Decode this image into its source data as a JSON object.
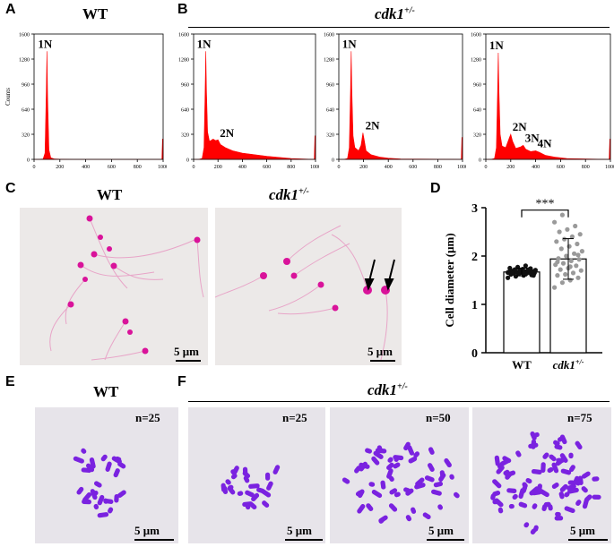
{
  "panels": {
    "a": {
      "letter": "A",
      "title": "WT"
    },
    "b": {
      "letter": "B",
      "title": "cdk1",
      "title_sup": "+/-"
    },
    "c": {
      "letter": "C",
      "wt_title": "WT",
      "mut_title": "cdk1",
      "mut_sup": "+/-",
      "scale_wt": "5 μm",
      "scale_mut": "5 μm"
    },
    "d": {
      "letter": "D"
    },
    "e": {
      "letter": "E",
      "title": "WT",
      "n": "n=25",
      "scale": "5 μm"
    },
    "f": {
      "letter": "F",
      "title": "cdk1",
      "title_sup": "+/-",
      "n1": "n=25",
      "n2": "n=50",
      "n3": "n=75",
      "scale": "5 μm"
    }
  },
  "colors": {
    "histogram": "#ff0000",
    "sperm_head": "#d9139a",
    "chromosome": "#7a22e0",
    "bar_wt_points": "#111111",
    "bar_mut_points": "#9a9a9a",
    "photo_bg": "#ece9e8",
    "karyo_bg": "#e7e4ea"
  },
  "chart_data": [
    {
      "type": "area",
      "panel": "A",
      "ylabel": "Counts",
      "yticks": [
        "0",
        "320",
        "640",
        "960",
        "1280",
        "1600"
      ],
      "xticks": [
        "0",
        "200",
        "400",
        "600",
        "800",
        "1000"
      ],
      "ylim": [
        0,
        1600
      ],
      "xlim": [
        0,
        1000
      ],
      "peak_labels": [
        {
          "text": "1N",
          "x": 100,
          "y": 1380
        }
      ],
      "x": [
        0,
        40,
        70,
        85,
        95,
        100,
        105,
        115,
        130,
        160,
        200,
        300,
        500,
        800,
        990,
        995,
        1000
      ],
      "y": [
        0,
        0,
        5,
        80,
        900,
        1380,
        800,
        120,
        20,
        5,
        2,
        0,
        0,
        0,
        0,
        260,
        260
      ]
    },
    {
      "type": "area",
      "panel": "B1",
      "yticks": [
        "0",
        "320",
        "640",
        "960",
        "1280",
        "1600"
      ],
      "xticks": [
        "0",
        "200",
        "400",
        "600",
        "800",
        "1000"
      ],
      "ylim": [
        0,
        1600
      ],
      "xlim": [
        0,
        1000
      ],
      "peak_labels": [
        {
          "text": "1N",
          "x": 100,
          "y": 1380
        },
        {
          "text": "2N",
          "x": 200,
          "y": 240
        }
      ],
      "x": [
        0,
        40,
        70,
        85,
        95,
        100,
        105,
        115,
        130,
        160,
        180,
        200,
        220,
        260,
        320,
        400,
        500,
        600,
        700,
        800,
        990,
        995,
        1000
      ],
      "y": [
        0,
        0,
        10,
        150,
        900,
        1380,
        900,
        350,
        230,
        260,
        240,
        250,
        190,
        150,
        110,
        80,
        60,
        40,
        25,
        10,
        0,
        300,
        300
      ]
    },
    {
      "type": "area",
      "panel": "B2",
      "yticks": [
        "0",
        "320",
        "640",
        "960",
        "1280",
        "1600"
      ],
      "xticks": [
        "0",
        "200",
        "400",
        "600",
        "800",
        "1000"
      ],
      "ylim": [
        0,
        1600
      ],
      "xlim": [
        0,
        1000
      ],
      "peak_labels": [
        {
          "text": "1N",
          "x": 100,
          "y": 1380
        },
        {
          "text": "2N",
          "x": 200,
          "y": 340
        }
      ],
      "x": [
        0,
        40,
        70,
        85,
        95,
        100,
        105,
        115,
        130,
        160,
        180,
        195,
        205,
        220,
        260,
        330,
        400,
        500,
        990,
        995,
        1000
      ],
      "y": [
        0,
        0,
        10,
        150,
        900,
        1380,
        900,
        300,
        150,
        110,
        180,
        340,
        250,
        110,
        60,
        30,
        15,
        5,
        0,
        280,
        280
      ]
    },
    {
      "type": "area",
      "panel": "B3",
      "yticks": [
        "0",
        "320",
        "640",
        "960",
        "1280",
        "1600"
      ],
      "xticks": [
        "0",
        "200",
        "400",
        "600",
        "800",
        "1000"
      ],
      "ylim": [
        0,
        1600
      ],
      "xlim": [
        0,
        1000
      ],
      "peak_labels": [
        {
          "text": "1N",
          "x": 100,
          "y": 1360
        },
        {
          "text": "2N",
          "x": 200,
          "y": 320
        },
        {
          "text": "3N",
          "x": 300,
          "y": 180
        },
        {
          "text": "4N",
          "x": 400,
          "y": 110
        }
      ],
      "x": [
        0,
        40,
        70,
        85,
        95,
        100,
        105,
        115,
        130,
        160,
        190,
        200,
        215,
        240,
        280,
        300,
        320,
        360,
        400,
        430,
        480,
        550,
        650,
        990,
        995,
        1000
      ],
      "y": [
        0,
        0,
        10,
        150,
        900,
        1360,
        900,
        320,
        170,
        150,
        280,
        320,
        230,
        140,
        160,
        180,
        130,
        100,
        110,
        90,
        50,
        30,
        10,
        0,
        260,
        260
      ]
    },
    {
      "type": "bar",
      "panel": "D",
      "categories": [
        "WT",
        "cdk1"
      ],
      "category_sup": [
        "",
        "+/-"
      ],
      "values": [
        1.67,
        1.94
      ],
      "errors": [
        0.08,
        0.42
      ],
      "ylabel": "Cell diameter (μm)",
      "ylim": [
        0,
        3
      ],
      "yticks": [
        "0",
        "1",
        "2",
        "3"
      ],
      "significance": "***",
      "points": [
        [
          1.55,
          1.58,
          1.6,
          1.61,
          1.62,
          1.63,
          1.64,
          1.65,
          1.65,
          1.66,
          1.66,
          1.67,
          1.67,
          1.68,
          1.68,
          1.69,
          1.7,
          1.7,
          1.71,
          1.72,
          1.73,
          1.74,
          1.75,
          1.77,
          1.8,
          1.6,
          1.64,
          1.69,
          1.72,
          1.66
        ],
        [
          1.35,
          1.45,
          1.5,
          1.55,
          1.6,
          1.62,
          1.65,
          1.7,
          1.72,
          1.75,
          1.8,
          1.82,
          1.85,
          1.9,
          1.93,
          1.95,
          2.0,
          2.05,
          2.1,
          2.15,
          2.2,
          2.25,
          2.3,
          2.35,
          2.4,
          2.45,
          2.5,
          2.55,
          2.62,
          2.7,
          2.85,
          1.78,
          2.02,
          1.88
        ]
      ]
    }
  ]
}
